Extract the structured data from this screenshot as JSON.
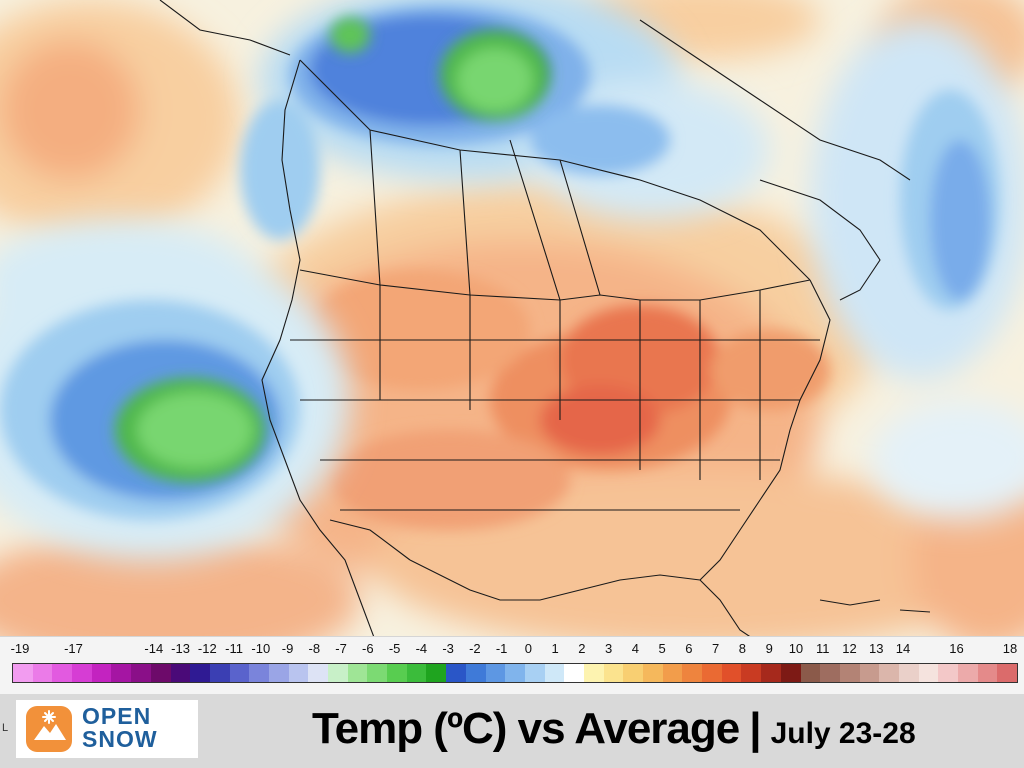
{
  "map": {
    "title_main": "Temp (ºC) vs Average",
    "title_separator": "|",
    "title_dates": "July 23-28",
    "colors": {
      "land_bg": "#f7f1df",
      "warm_light": "#f8d6a8",
      "warm_mid": "#f5b07c",
      "warm_strong": "#ee8f60",
      "warm_core": "#e5664a",
      "cool_light": "#d7ecf6",
      "cool_mid": "#9fcdf0",
      "cool_strong": "#5f99e2",
      "cool_core": "#3f6fd4",
      "anomaly_green": "#72d26c",
      "border_line": "#1a1a1a"
    }
  },
  "scale": {
    "unit": "ºC",
    "ticks": [
      "-19",
      "-17",
      "-14",
      "-13",
      "-12",
      "-11",
      "-10",
      "-9",
      "-8",
      "-7",
      "-6",
      "-5",
      "-4",
      "-3",
      "-2",
      "-1",
      "0",
      "1",
      "2",
      "3",
      "4",
      "5",
      "6",
      "7",
      "8",
      "9",
      "10",
      "11",
      "12",
      "13",
      "14",
      "16",
      "18"
    ],
    "tick_order": [
      0,
      2,
      5,
      6,
      7,
      8,
      9,
      10,
      11,
      12,
      13,
      14,
      15,
      16,
      17,
      18,
      19,
      20,
      21,
      22,
      23,
      24,
      25,
      26,
      27,
      28,
      29,
      30,
      31,
      32,
      33,
      35,
      37
    ],
    "tick_range": [
      0,
      37
    ],
    "swatches": [
      "#f29cf0",
      "#eb7be8",
      "#e25ae0",
      "#d63dd4",
      "#c323c0",
      "#a515a3",
      "#8a0f88",
      "#6d0a6a",
      "#4a0a78",
      "#2f1a93",
      "#3b3fb3",
      "#5a63cc",
      "#7a84db",
      "#9aa5e6",
      "#b9c4ef",
      "#dde3f5",
      "#c8f0c8",
      "#9fe596",
      "#7cda73",
      "#58cd50",
      "#3bbc3b",
      "#1fa41f",
      "#2a56c7",
      "#3f7ad8",
      "#5d97e3",
      "#80b4ec",
      "#a8d0f3",
      "#cfe8f8",
      "#ffffff",
      "#fdf3b0",
      "#fbe38e",
      "#f8cf72",
      "#f5b85c",
      "#f29d4b",
      "#ee843e",
      "#ea6a33",
      "#e1502a",
      "#c93b22",
      "#a6291c",
      "#7d1a15",
      "#8b5a4a",
      "#9e6d60",
      "#b38375",
      "#c79b8e",
      "#dbb6ab",
      "#ead0c9",
      "#f5e3de",
      "#f3c8c8",
      "#ecaaaa",
      "#e48a8a",
      "#db6b6b"
    ]
  },
  "logo": {
    "line1": "OPEN",
    "line2": "SNOW",
    "brand_color": "#1f5f9c",
    "mark_color": "#f2913a",
    "icon": "snowflake-mountain-icon"
  },
  "side_letter": "L"
}
